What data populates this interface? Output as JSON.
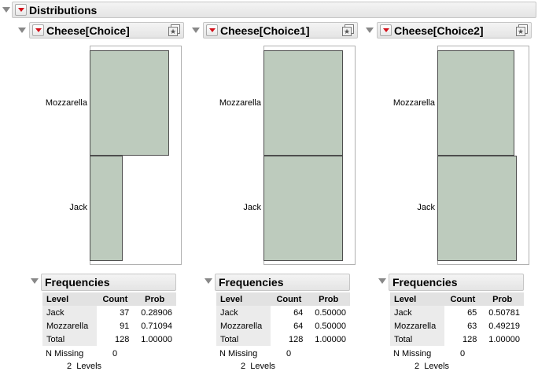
{
  "report": {
    "title": "Distributions",
    "panels": [
      {
        "title": "Cheese[Choice]",
        "chart_data": {
          "type": "bar",
          "orientation": "horizontal",
          "categories": [
            "Mozzarella",
            "Jack"
          ],
          "values": [
            91,
            37
          ],
          "shares": [
            0.71094,
            0.28906
          ]
        },
        "freq": {
          "title": "Frequencies",
          "headers": [
            "Level",
            "Count",
            "Prob"
          ],
          "rows": [
            {
              "level": "Jack",
              "count": "37",
              "prob": "0.28906"
            },
            {
              "level": "Mozzarella",
              "count": "91",
              "prob": "0.71094"
            },
            {
              "level": "Total",
              "count": "128",
              "prob": "1.00000"
            }
          ],
          "missing_label": "N Missing",
          "missing_value": "0",
          "levels_text": "2  Levels"
        }
      },
      {
        "title": "Cheese[Choice1]",
        "chart_data": {
          "type": "bar",
          "orientation": "horizontal",
          "categories": [
            "Mozzarella",
            "Jack"
          ],
          "values": [
            64,
            64
          ],
          "shares": [
            0.5,
            0.5
          ]
        },
        "freq": {
          "title": "Frequencies",
          "headers": [
            "Level",
            "Count",
            "Prob"
          ],
          "rows": [
            {
              "level": "Jack",
              "count": "64",
              "prob": "0.50000"
            },
            {
              "level": "Mozzarella",
              "count": "64",
              "prob": "0.50000"
            },
            {
              "level": "Total",
              "count": "128",
              "prob": "1.00000"
            }
          ],
          "missing_label": "N Missing",
          "missing_value": "0",
          "levels_text": "2  Levels"
        }
      },
      {
        "title": "Cheese[Choice2]",
        "chart_data": {
          "type": "bar",
          "orientation": "horizontal",
          "categories": [
            "Mozzarella",
            "Jack"
          ],
          "values": [
            63,
            65
          ],
          "shares": [
            0.49219,
            0.50781
          ]
        },
        "freq": {
          "title": "Frequencies",
          "headers": [
            "Level",
            "Count",
            "Prob"
          ],
          "rows": [
            {
              "level": "Jack",
              "count": "65",
              "prob": "0.50781"
            },
            {
              "level": "Mozzarella",
              "count": "63",
              "prob": "0.49219"
            },
            {
              "level": "Total",
              "count": "128",
              "prob": "1.00000"
            }
          ],
          "missing_label": "N Missing",
          "missing_value": "0",
          "levels_text": "2  Levels"
        }
      }
    ]
  }
}
